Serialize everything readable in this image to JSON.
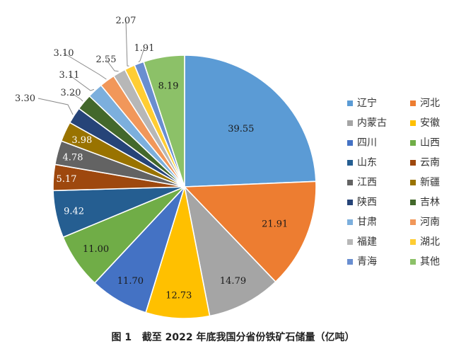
{
  "caption": "图 1   截至 2022 年底我国分省份铁矿石储量（亿吨）",
  "chart_data": {
    "type": "pie",
    "title": "",
    "unit": "亿吨",
    "start_angle_deg": 0,
    "direction": "clockwise",
    "legend_position": "right",
    "slices": [
      {
        "name": "辽宁",
        "value": 39.55,
        "color": "#5b9bd5"
      },
      {
        "name": "河北",
        "value": 21.91,
        "color": "#ed7d31"
      },
      {
        "name": "内蒙古",
        "value": 14.79,
        "color": "#a5a5a5"
      },
      {
        "name": "安徽",
        "value": 12.73,
        "color": "#ffc000"
      },
      {
        "name": "四川",
        "value": 11.7,
        "color": "#4472c4"
      },
      {
        "name": "山西",
        "value": 11.0,
        "color": "#70ad47"
      },
      {
        "name": "山东",
        "value": 9.42,
        "color": "#255e91"
      },
      {
        "name": "云南",
        "value": 5.17,
        "color": "#9e480e"
      },
      {
        "name": "江西",
        "value": 4.78,
        "color": "#636363"
      },
      {
        "name": "新疆",
        "value": 3.98,
        "color": "#997300"
      },
      {
        "name": "陕西",
        "value": 3.3,
        "color": "#264478"
      },
      {
        "name": "吉林",
        "value": 3.2,
        "color": "#43682b"
      },
      {
        "name": "甘肃",
        "value": 3.11,
        "color": "#7cafdd"
      },
      {
        "name": "河南",
        "value": 3.1,
        "color": "#f1975a"
      },
      {
        "name": "福建",
        "value": 2.55,
        "color": "#b7b7b7"
      },
      {
        "name": "湖北",
        "value": 2.07,
        "color": "#ffcd33"
      },
      {
        "name": "青海",
        "value": 1.91,
        "color": "#698ed0"
      },
      {
        "name": "其他",
        "value": 8.19,
        "color": "#8cc168"
      }
    ]
  }
}
